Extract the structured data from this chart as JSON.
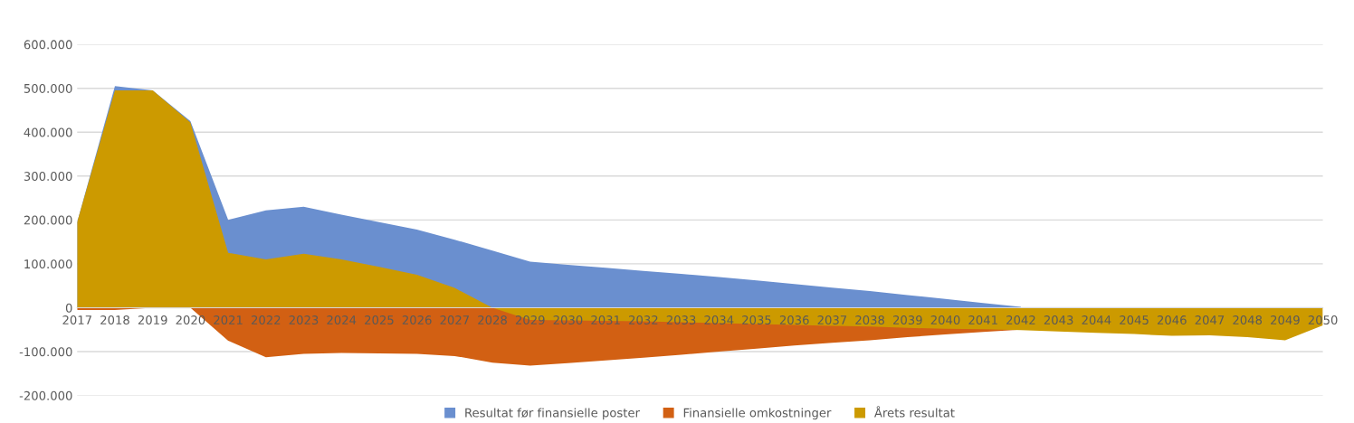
{
  "chart_data": {
    "type": "area",
    "categories": [
      "2017",
      "2018",
      "2019",
      "2020",
      "2021",
      "2022",
      "2023",
      "2024",
      "2025",
      "2026",
      "2027",
      "2028",
      "2029",
      "2030",
      "2031",
      "2032",
      "2033",
      "2034",
      "2035",
      "2036",
      "2037",
      "2038",
      "2039",
      "2040",
      "2041",
      "2042",
      "2043",
      "2044",
      "2045",
      "2046",
      "2047",
      "2048",
      "2049",
      "2050"
    ],
    "series": [
      {
        "name": "Resultat før finansielle poster",
        "color": "#6a8fcf",
        "values": [
          195000,
          505000,
          495000,
          425000,
          200000,
          222000,
          230000,
          212000,
          195000,
          178000,
          155000,
          130000,
          105000,
          98000,
          91000,
          84000,
          77000,
          70000,
          62000,
          54000,
          46000,
          38000,
          29000,
          20000,
          11000,
          2000,
          null,
          null,
          null,
          null,
          null,
          null,
          null,
          null
        ]
      },
      {
        "name": "Finansielle omkostninger",
        "color": "#d26013",
        "values": [
          -5000,
          -5000,
          0,
          0,
          -75000,
          -113000,
          -105000,
          -103000,
          -104000,
          -105000,
          -110000,
          -125000,
          -132000,
          -126000,
          -120000,
          -114000,
          -107000,
          -100000,
          -93000,
          -86000,
          -80000,
          -74000,
          -67000,
          -61000,
          -55000,
          -50000,
          null,
          null,
          null,
          null,
          null,
          null,
          null,
          null
        ]
      },
      {
        "name": "Årets resultat",
        "color": "#cc9a00",
        "values": [
          195000,
          495000,
          495000,
          422000,
          125000,
          110000,
          123000,
          110000,
          93000,
          75000,
          45000,
          0,
          -28000,
          -29000,
          -30000,
          -31000,
          -33000,
          -35000,
          -37000,
          -39000,
          -41000,
          -43000,
          -46000,
          -48000,
          -49000,
          -51000,
          -54000,
          -57000,
          -60000,
          -64000,
          -63000,
          -67000,
          -74000,
          -40000
        ]
      }
    ],
    "ylim": [
      -200000,
      600000
    ],
    "yticks": [
      {
        "value": -200000,
        "label": "-200.000"
      },
      {
        "value": -100000,
        "label": "-100.000"
      },
      {
        "value": 0,
        "label": "0"
      },
      {
        "value": 100000,
        "label": "100.000"
      },
      {
        "value": 200000,
        "label": "200.000"
      },
      {
        "value": 300000,
        "label": "300.000"
      },
      {
        "value": 400000,
        "label": "400.000"
      },
      {
        "value": 500000,
        "label": "500.000"
      },
      {
        "value": 600000,
        "label": "600.000"
      }
    ],
    "grid": "y",
    "legend": "bottom"
  }
}
